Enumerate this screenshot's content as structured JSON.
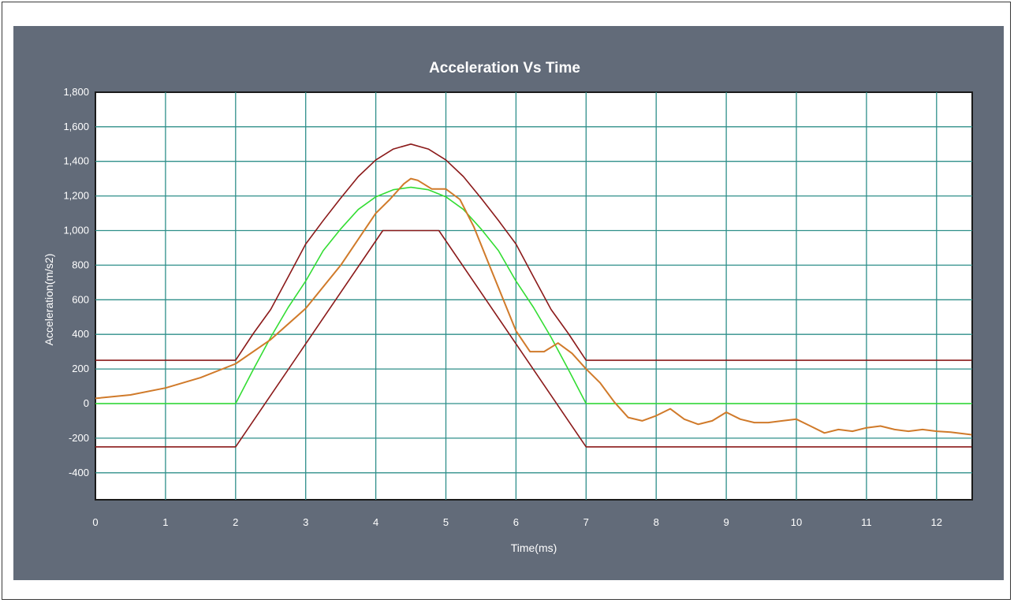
{
  "chart_data": {
    "type": "line",
    "title": "Acceleration Vs Time",
    "xlabel": "Time(ms)",
    "ylabel": "Acceleration(m/s2)",
    "xlim": [
      0,
      12.5
    ],
    "ylim": [
      -550,
      1800
    ],
    "x_ticks": [
      0,
      1,
      2,
      3,
      4,
      5,
      6,
      7,
      8,
      9,
      10,
      11,
      12
    ],
    "y_ticks": [
      1800,
      1600,
      1400,
      1200,
      1000,
      800,
      600,
      400,
      200,
      0,
      -200,
      -400
    ],
    "y_tick_labels": [
      "1,800",
      "1,600",
      "1,400",
      "1,200",
      "1,000",
      "800",
      "600",
      "400",
      "200",
      "0",
      "-200",
      "-400"
    ],
    "grid": true,
    "legend": "none",
    "series": [
      {
        "color": "#8b1a1a",
        "x": [
          0,
          2,
          2.25,
          2.5,
          2.75,
          3,
          3.25,
          3.5,
          3.75,
          4,
          4.25,
          4.5,
          4.75,
          5,
          5.25,
          5.5,
          5.75,
          6,
          6.25,
          6.5,
          6.75,
          7,
          12.5
        ],
        "y": [
          250,
          250,
          403,
          544,
          732,
          922,
          1058,
          1188,
          1312,
          1408,
          1471,
          1500,
          1471,
          1408,
          1312,
          1188,
          1058,
          922,
          732,
          544,
          403,
          250,
          250
        ]
      },
      {
        "color": "#8b1a1a",
        "x": [
          0,
          2,
          4.1,
          4.9,
          7,
          12.5
        ],
        "y": [
          -250,
          -250,
          1000,
          1000,
          -250,
          -250
        ]
      },
      {
        "color": "#33dd33",
        "x": [
          0,
          2,
          2.25,
          2.5,
          2.75,
          3,
          3.25,
          3.5,
          3.75,
          4,
          4.25,
          4.5,
          4.75,
          5,
          5.25,
          5.5,
          5.75,
          6,
          6.25,
          6.5,
          6.75,
          7,
          12.5
        ],
        "y": [
          0,
          0,
          195,
          383,
          556,
          708,
          884,
          1010,
          1122,
          1195,
          1236,
          1250,
          1236,
          1195,
          1122,
          1010,
          884,
          708,
          556,
          383,
          195,
          0,
          0
        ]
      },
      {
        "color": "#d07a2a",
        "x": [
          0,
          0.5,
          1,
          1.5,
          2,
          2.5,
          3,
          3.5,
          3.8,
          4,
          4.2,
          4.4,
          4.5,
          4.6,
          4.8,
          5,
          5.2,
          5.4,
          5.6,
          5.8,
          6,
          6.2,
          6.4,
          6.6,
          6.8,
          7,
          7.2,
          7.4,
          7.6,
          7.8,
          8,
          8.2,
          8.4,
          8.6,
          8.8,
          9,
          9.2,
          9.4,
          9.6,
          9.8,
          10,
          10.2,
          10.4,
          10.6,
          10.8,
          11,
          11.2,
          11.4,
          11.6,
          11.8,
          12,
          12.2,
          12.5
        ],
        "y": [
          30,
          50,
          90,
          150,
          230,
          370,
          550,
          800,
          980,
          1100,
          1180,
          1270,
          1300,
          1290,
          1240,
          1240,
          1180,
          1020,
          820,
          620,
          420,
          300,
          300,
          350,
          290,
          200,
          120,
          10,
          -80,
          -100,
          -70,
          -30,
          -90,
          -120,
          -100,
          -50,
          -90,
          -110,
          -110,
          -100,
          -90,
          -130,
          -170,
          -150,
          -160,
          -140,
          -130,
          -150,
          -160,
          -150,
          -160,
          -165,
          -180
        ]
      }
    ]
  }
}
